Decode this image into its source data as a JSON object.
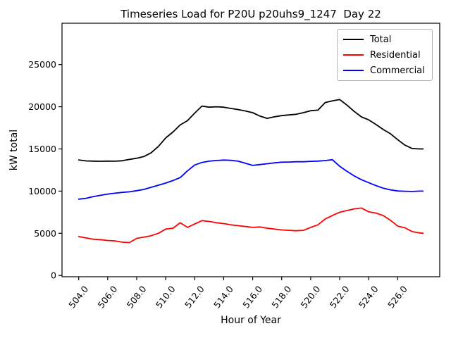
{
  "chart_data": {
    "type": "line",
    "title": "Timeseries Load for P20U p20uhs9_1247  Day 22",
    "xlabel": "Hour of Year",
    "ylabel": "kW total",
    "xlim": [
      502.85,
      528.9
    ],
    "ylim": [
      -150,
      29900
    ],
    "grid": false,
    "legend_position": "upper right",
    "x_ticks": [
      504,
      506,
      508,
      510,
      512,
      514,
      516,
      518,
      520,
      522,
      524,
      526
    ],
    "x_tick_labels": [
      "504.0",
      "506.0",
      "508.0",
      "510.0",
      "512.0",
      "514.0",
      "516.0",
      "518.0",
      "520.0",
      "522.0",
      "524.0",
      "526.0"
    ],
    "y_ticks": [
      0,
      5000,
      10000,
      15000,
      20000,
      25000
    ],
    "y_tick_labels": [
      "0",
      "5000",
      "10000",
      "15000",
      "20000",
      "25000"
    ],
    "x": [
      504,
      504.5,
      505,
      505.5,
      506,
      506.5,
      507,
      507.5,
      508,
      508.5,
      509,
      509.5,
      510,
      510.5,
      511,
      511.5,
      512,
      512.5,
      513,
      513.5,
      514,
      514.5,
      515,
      515.5,
      516,
      516.5,
      517,
      517.5,
      518,
      518.5,
      519,
      519.5,
      520,
      520.5,
      521,
      521.5,
      522,
      522.5,
      523,
      523.5,
      524,
      524.5,
      525,
      525.5,
      526,
      526.5,
      527,
      527.5,
      527.75
    ],
    "series": [
      {
        "name": "Total",
        "color": "#000000",
        "values": [
          13700,
          13580,
          13560,
          13540,
          13560,
          13550,
          13600,
          13760,
          13900,
          14100,
          14550,
          15300,
          16300,
          17000,
          17850,
          18350,
          19250,
          20080,
          19950,
          20000,
          19950,
          19800,
          19670,
          19500,
          19300,
          18890,
          18620,
          18810,
          18950,
          19030,
          19110,
          19300,
          19530,
          19600,
          20500,
          20700,
          20850,
          20200,
          19450,
          18800,
          18450,
          17900,
          17300,
          16800,
          16100,
          15450,
          15050,
          15000,
          15000
        ]
      },
      {
        "name": "Residential",
        "color": "#ff0000",
        "values": [
          4620,
          4450,
          4300,
          4250,
          4150,
          4100,
          3950,
          3900,
          4400,
          4550,
          4720,
          5000,
          5500,
          5600,
          6250,
          5700,
          6100,
          6500,
          6400,
          6250,
          6150,
          6000,
          5900,
          5800,
          5700,
          5750,
          5600,
          5500,
          5400,
          5350,
          5300,
          5350,
          5700,
          6000,
          6700,
          7100,
          7500,
          7700,
          7900,
          8000,
          7550,
          7400,
          7100,
          6550,
          5850,
          5650,
          5200,
          5050,
          5000
        ]
      },
      {
        "name": "Commercial",
        "color": "#0000ff",
        "values": [
          9050,
          9150,
          9350,
          9500,
          9650,
          9750,
          9850,
          9920,
          10050,
          10200,
          10450,
          10700,
          10950,
          11250,
          11600,
          12400,
          13100,
          13400,
          13550,
          13630,
          13680,
          13650,
          13550,
          13300,
          13050,
          13150,
          13250,
          13350,
          13430,
          13450,
          13480,
          13480,
          13530,
          13560,
          13620,
          13720,
          12950,
          12350,
          11800,
          11350,
          11000,
          10650,
          10350,
          10150,
          10020,
          9980,
          9960,
          10000,
          10000
        ]
      }
    ]
  }
}
